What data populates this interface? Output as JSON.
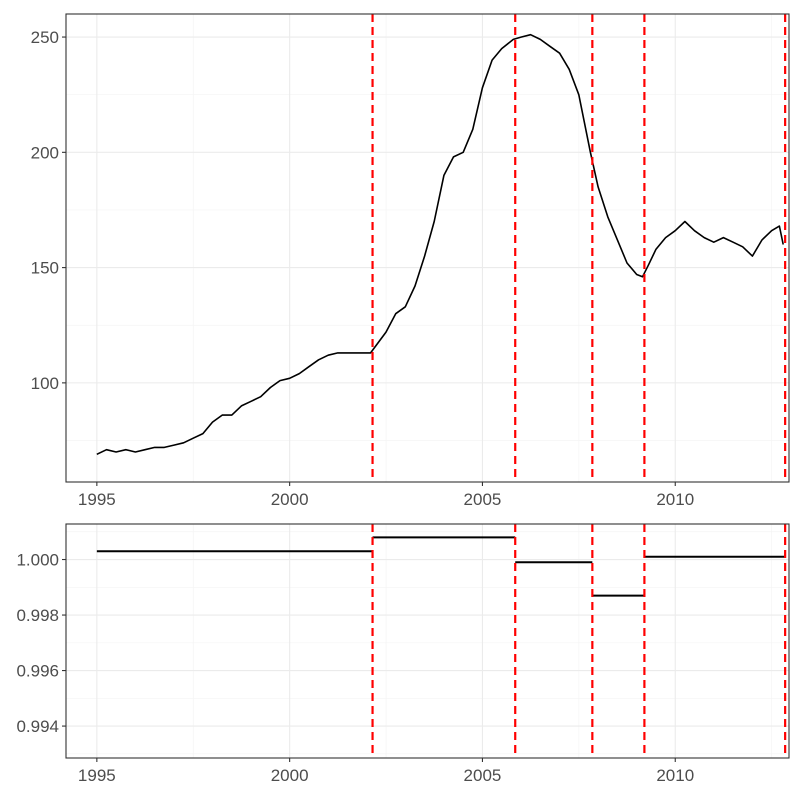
{
  "chart_data": [
    {
      "type": "line",
      "title": "",
      "xlabel": "",
      "ylabel": "",
      "xlim": [
        1994.2,
        2012.95
      ],
      "ylim": [
        57,
        260
      ],
      "x_ticks": [
        1995,
        2000,
        2005,
        2010
      ],
      "x_tick_labels": [
        "1995",
        "2000",
        "2005",
        "2010"
      ],
      "y_ticks": [
        100,
        150,
        200,
        250
      ],
      "y_tick_labels": [
        "100",
        "150",
        "200",
        "250"
      ],
      "grid": true,
      "series": [
        {
          "color": "#000000",
          "x": [
            1995.0,
            1995.25,
            1995.5,
            1995.75,
            1996.0,
            1996.25,
            1996.5,
            1996.75,
            1997.0,
            1997.25,
            1997.5,
            1997.75,
            1998.0,
            1998.25,
            1998.5,
            1998.75,
            1999.0,
            1999.25,
            1999.5,
            1999.75,
            2000.0,
            2000.25,
            2000.5,
            2000.75,
            2001.0,
            2001.25,
            2001.5,
            2001.75,
            2002.1,
            2002.5,
            2002.75,
            2003.0,
            2003.25,
            2003.5,
            2003.75,
            2004.0,
            2004.25,
            2004.5,
            2004.75,
            2005.0,
            2005.25,
            2005.5,
            2005.8,
            2006.0,
            2006.25,
            2006.5,
            2006.75,
            2007.0,
            2007.25,
            2007.5,
            2007.8,
            2008.0,
            2008.25,
            2008.5,
            2008.75,
            2009.0,
            2009.15,
            2009.3,
            2009.5,
            2009.75,
            2010.0,
            2010.25,
            2010.5,
            2010.75,
            2011.0,
            2011.25,
            2011.5,
            2011.75,
            2012.0,
            2012.25,
            2012.5,
            2012.7,
            2012.8
          ],
          "y": [
            69,
            71,
            70,
            71,
            70,
            71,
            72,
            72,
            73,
            74,
            76,
            78,
            83,
            86,
            86,
            90,
            92,
            94,
            98,
            101,
            102,
            104,
            107,
            110,
            112,
            113,
            113,
            113,
            113,
            122,
            130,
            133,
            142,
            155,
            170,
            190,
            198,
            200,
            210,
            228,
            240,
            245,
            249,
            250,
            251,
            249,
            246,
            243,
            236,
            225,
            200,
            185,
            172,
            162,
            152,
            147,
            146,
            151,
            158,
            163,
            166,
            170,
            166,
            163,
            161,
            163,
            161,
            159,
            155,
            162,
            166,
            168,
            160
          ]
        }
      ],
      "vlines": [
        2002.15,
        2005.85,
        2007.85,
        2009.2,
        2012.85
      ],
      "vline_color": "#ff0000",
      "vline_style": "dashed"
    },
    {
      "type": "line",
      "title": "",
      "xlabel": "",
      "ylabel": "",
      "xlim": [
        1994.2,
        2012.95
      ],
      "ylim": [
        0.99285,
        1.00128
      ],
      "x_ticks": [
        1995,
        2000,
        2005,
        2010
      ],
      "x_tick_labels": [
        "1995",
        "2000",
        "2005",
        "2010"
      ],
      "y_ticks": [
        0.994,
        0.996,
        0.998,
        1.0
      ],
      "y_tick_labels": [
        "0.994",
        "0.996",
        "0.998",
        "1.000"
      ],
      "grid": true,
      "segments": [
        {
          "x_start": 1995.0,
          "x_end": 2002.15,
          "value": 1.0003
        },
        {
          "x_start": 2002.15,
          "x_end": 2005.85,
          "value": 1.0008
        },
        {
          "x_start": 2005.85,
          "x_end": 2007.85,
          "value": 0.9999
        },
        {
          "x_start": 2007.85,
          "x_end": 2009.2,
          "value": 0.9987
        },
        {
          "x_start": 2009.2,
          "x_end": 2012.85,
          "value": 1.0001
        }
      ],
      "segment_color": "#000000",
      "vlines": [
        2002.15,
        2005.85,
        2007.85,
        2009.2,
        2012.85
      ],
      "vline_color": "#ff0000",
      "vline_style": "dashed"
    }
  ]
}
